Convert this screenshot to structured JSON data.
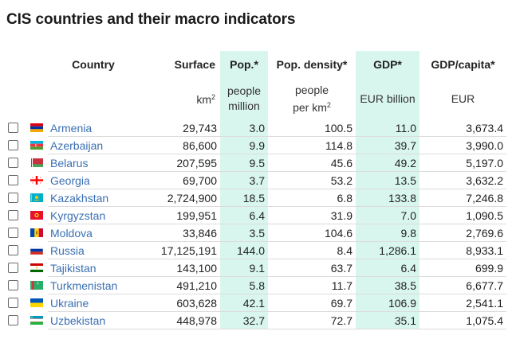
{
  "title": "CIS countries and their macro indicators",
  "headers": {
    "country": "Country",
    "surface": "Surface",
    "pop": "Pop.*",
    "density": "Pop. density*",
    "gdp": "GDP*",
    "gdp_capita": "GDP/capita*"
  },
  "units": {
    "surface_base": "km",
    "surface_sup": "2",
    "pop_line1": "people",
    "pop_line2": "million",
    "density_line1": "people",
    "density_line2": "per km",
    "density_sup": "2",
    "gdp": "EUR billion",
    "gdp_capita": "EUR"
  },
  "colors": {
    "highlight": "#d9f6ee",
    "link": "#3a6fb3"
  },
  "rows": [
    {
      "flag": "armenia-flag-icon",
      "country": "Armenia",
      "surface": "29,743",
      "pop": "3.0",
      "density": "100.5",
      "gdp": "11.0",
      "gdp_capita": "3,673.4"
    },
    {
      "flag": "azerbaijan-flag-icon",
      "country": "Azerbaijan",
      "surface": "86,600",
      "pop": "9.9",
      "density": "114.8",
      "gdp": "39.7",
      "gdp_capita": "3,990.0"
    },
    {
      "flag": "belarus-flag-icon",
      "country": "Belarus",
      "surface": "207,595",
      "pop": "9.5",
      "density": "45.6",
      "gdp": "49.2",
      "gdp_capita": "5,197.0"
    },
    {
      "flag": "georgia-flag-icon",
      "country": "Georgia",
      "surface": "69,700",
      "pop": "3.7",
      "density": "53.2",
      "gdp": "13.5",
      "gdp_capita": "3,632.2"
    },
    {
      "flag": "kazakhstan-flag-icon",
      "country": "Kazakhstan",
      "surface": "2,724,900",
      "pop": "18.5",
      "density": "6.8",
      "gdp": "133.8",
      "gdp_capita": "7,246.8"
    },
    {
      "flag": "kyrgyzstan-flag-icon",
      "country": "Kyrgyzstan",
      "surface": "199,951",
      "pop": "6.4",
      "density": "31.9",
      "gdp": "7.0",
      "gdp_capita": "1,090.5"
    },
    {
      "flag": "moldova-flag-icon",
      "country": "Moldova",
      "surface": "33,846",
      "pop": "3.5",
      "density": "104.6",
      "gdp": "9.8",
      "gdp_capita": "2,769.6"
    },
    {
      "flag": "russia-flag-icon",
      "country": "Russia",
      "surface": "17,125,191",
      "pop": "144.0",
      "density": "8.4",
      "gdp": "1,286.1",
      "gdp_capita": "8,933.1"
    },
    {
      "flag": "tajikistan-flag-icon",
      "country": "Tajikistan",
      "surface": "143,100",
      "pop": "9.1",
      "density": "63.7",
      "gdp": "6.4",
      "gdp_capita": "699.9"
    },
    {
      "flag": "turkmenistan-flag-icon",
      "country": "Turkmenistan",
      "surface": "491,210",
      "pop": "5.8",
      "density": "11.7",
      "gdp": "38.5",
      "gdp_capita": "6,677.7"
    },
    {
      "flag": "ukraine-flag-icon",
      "country": "Ukraine",
      "surface": "603,628",
      "pop": "42.1",
      "density": "69.7",
      "gdp": "106.9",
      "gdp_capita": "2,541.1"
    },
    {
      "flag": "uzbekistan-flag-icon",
      "country": "Uzbekistan",
      "surface": "448,978",
      "pop": "32.7",
      "density": "72.7",
      "gdp": "35.1",
      "gdp_capita": "1,075.4"
    }
  ]
}
